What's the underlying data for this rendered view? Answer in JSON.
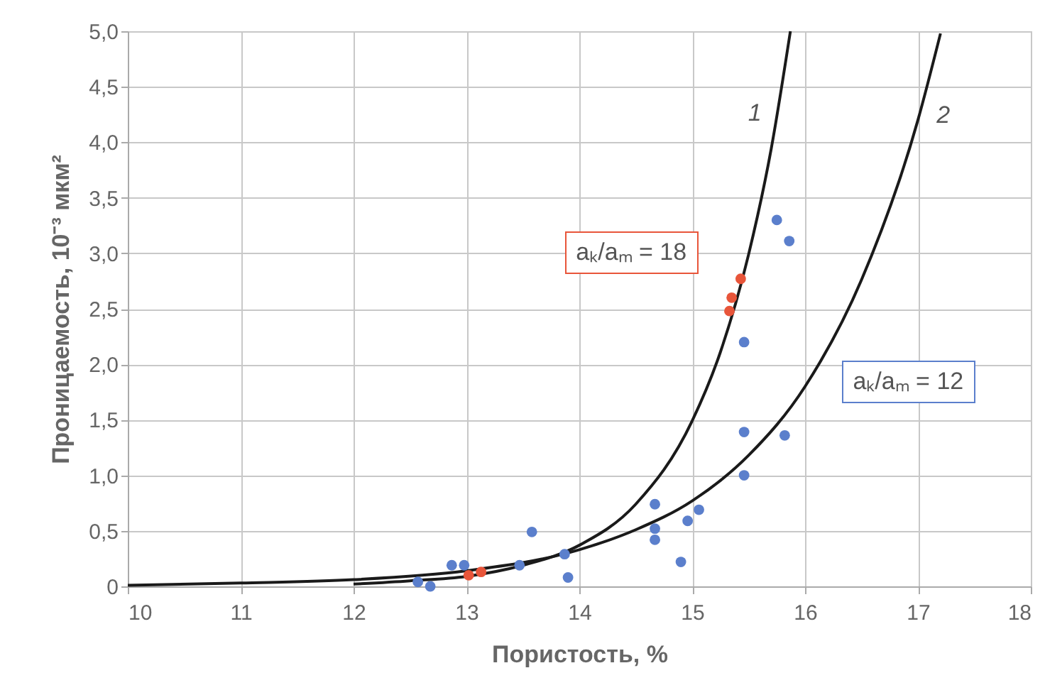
{
  "chart_data": {
    "type": "scatter",
    "xlabel": "Пористость, %",
    "ylabel": "Проницаемость, 10⁻³ мкм²",
    "xlim": [
      10,
      18
    ],
    "xticks": [
      10,
      11,
      12,
      13,
      14,
      15,
      16,
      17,
      18
    ],
    "ylim": [
      0,
      5
    ],
    "yticks": [
      0,
      {
        "value": 0.5,
        "label": "0,5"
      },
      {
        "value": 1,
        "label": "1,0"
      },
      {
        "value": 1.5,
        "label": "1,5"
      },
      {
        "value": 2,
        "label": "2,0"
      },
      {
        "value": 2.5,
        "label": "2,5"
      },
      {
        "value": 3,
        "label": "3,0"
      },
      {
        "value": 3.5,
        "label": "3,5"
      },
      {
        "value": 4,
        "label": "4,0"
      },
      {
        "value": 4.5,
        "label": "4,5"
      },
      {
        "value": 5,
        "label": "5,0"
      }
    ],
    "grid": true,
    "series": [
      {
        "name": "aₖ/aₘ = 12",
        "marker": "circle",
        "color": "#5b7fcc",
        "x": [
          12.57,
          12.68,
          12.87,
          12.98,
          13.47,
          13.58,
          13.87,
          13.9,
          14.67,
          14.67,
          14.67,
          14.9,
          14.96,
          15.06,
          15.46,
          15.46,
          15.46,
          15.75,
          15.86,
          15.82
        ],
        "values": [
          0.04,
          0.0,
          0.19,
          0.19,
          0.19,
          0.49,
          0.29,
          0.08,
          0.74,
          0.52,
          0.42,
          0.22,
          0.59,
          0.69,
          1.39,
          1.0,
          2.2,
          3.3,
          3.11,
          1.36
        ]
      },
      {
        "name": "aₖ/aₘ = 18",
        "marker": "circle",
        "color": "#e8553a",
        "x": [
          13.02,
          13.13,
          15.33,
          15.35,
          15.43
        ],
        "values": [
          0.1,
          0.13,
          2.48,
          2.6,
          2.77
        ]
      },
      {
        "name": "1",
        "type": "line",
        "color": "#1a1a1a",
        "line_style": "solid",
        "x": [
          12,
          12.5,
          13,
          13.5,
          14,
          14.5,
          15,
          15.25,
          15.5,
          15.7,
          15.87
        ],
        "values": [
          0.02,
          0.05,
          0.09,
          0.19,
          0.37,
          0.74,
          1.49,
          2.11,
          2.99,
          3.94,
          5.0
        ]
      },
      {
        "name": "2",
        "type": "line",
        "color": "#1a1a1a",
        "line_style": "solid",
        "x": [
          10,
          11,
          12,
          13,
          14,
          14.5,
          15,
          15.5,
          16,
          16.5,
          17,
          17.2
        ],
        "values": [
          0.01,
          0.03,
          0.06,
          0.14,
          0.33,
          0.51,
          0.77,
          1.18,
          1.8,
          2.76,
          4.2,
          4.98
        ]
      }
    ]
  }
}
